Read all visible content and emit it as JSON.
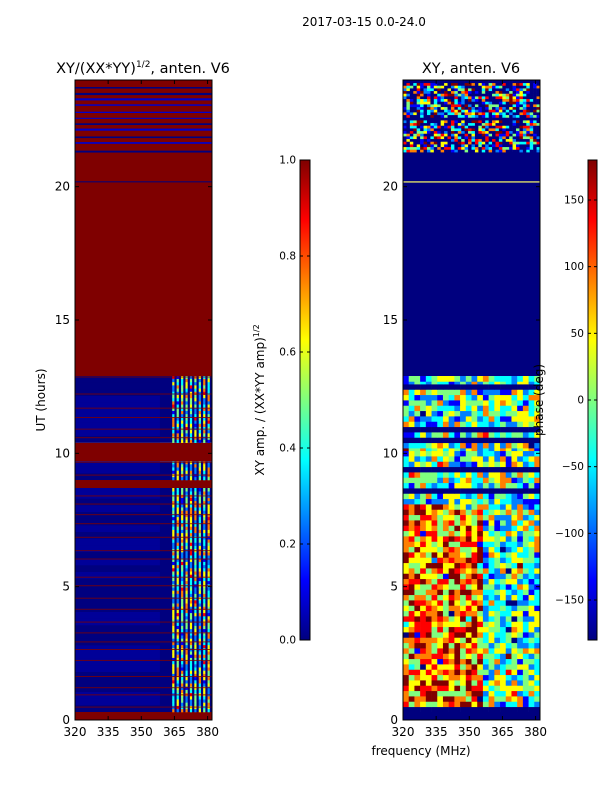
{
  "suptitle": "2017-03-15 0.0-24.0",
  "colors": {
    "jet": [
      "#00007f",
      "#0000ff",
      "#007fff",
      "#00ffff",
      "#7fff7f",
      "#ffff00",
      "#ff7f00",
      "#ff0000",
      "#7f0000"
    ],
    "dark_red": "#7f0000",
    "navy": "#00007f"
  },
  "chart_data": [
    {
      "type": "heatmap",
      "title": "XY/(XX*YY)^(1/2), anten. V6",
      "title_main": "XY/(XX*YY)",
      "title_sup": "1/2",
      "title_suffix": ", anten. V6",
      "xlabel": "",
      "ylabel": "UT (hours)",
      "xlim": [
        320,
        382
      ],
      "ylim": [
        0,
        24
      ],
      "xticks": [
        "320",
        "335",
        "350",
        "365",
        "380"
      ],
      "xtick_values": [
        320,
        335,
        350,
        365,
        380
      ],
      "yticks": [
        "0",
        "5",
        "10",
        "15",
        "20"
      ],
      "ytick_values": [
        0,
        5,
        10,
        15,
        20
      ],
      "bands": [
        {
          "t0": 0.0,
          "t1": 0.3,
          "kind": "saturated"
        },
        {
          "t0": 0.3,
          "t1": 8.7,
          "kind": "low_with_striped_channels"
        },
        {
          "t0": 8.7,
          "t1": 9.0,
          "kind": "saturated"
        },
        {
          "t0": 9.0,
          "t1": 9.7,
          "kind": "low_with_striped_channels"
        },
        {
          "t0": 9.7,
          "t1": 10.4,
          "kind": "saturated"
        },
        {
          "t0": 10.4,
          "t1": 12.9,
          "kind": "low_with_striped_channels"
        },
        {
          "t0": 12.9,
          "t1": 21.3,
          "kind": "saturated"
        },
        {
          "t0": 21.3,
          "t1": 24.0,
          "kind": "saturated_with_lines"
        }
      ],
      "colorbar": {
        "label": "XY amp. / (XX*YY amp)^(1/2)",
        "label_main": "XY amp. / (XX*YY amp)",
        "label_sup": "1/2",
        "min": 0.0,
        "max": 1.0,
        "ticks": [
          "0.0",
          "0.2",
          "0.4",
          "0.6",
          "0.8",
          "1.0"
        ],
        "tick_values": [
          0.0,
          0.2,
          0.4,
          0.6,
          0.8,
          1.0
        ]
      }
    },
    {
      "type": "heatmap",
      "title": "XY, anten. V6",
      "xlabel": "frequency (MHz)",
      "ylabel": "",
      "xlim": [
        320,
        382
      ],
      "ylim": [
        0,
        24
      ],
      "xticks": [
        "320",
        "335",
        "350",
        "365",
        "380"
      ],
      "xtick_values": [
        320,
        335,
        350,
        365,
        380
      ],
      "yticks": [
        "0",
        "5",
        "10",
        "15",
        "20"
      ],
      "ytick_values": [
        0,
        5,
        10,
        15,
        20
      ],
      "bands": [
        {
          "t0": 0.0,
          "t1": 0.3,
          "kind": "flagged"
        },
        {
          "t0": 0.3,
          "t1": 8.7,
          "kind": "phase_noise"
        },
        {
          "t0": 8.7,
          "t1": 10.4,
          "kind": "mixed"
        },
        {
          "t0": 10.4,
          "t1": 12.9,
          "kind": "phase_noise"
        },
        {
          "t0": 12.9,
          "t1": 21.3,
          "kind": "flagged"
        },
        {
          "t0": 21.3,
          "t1": 24.0,
          "kind": "random_noise"
        }
      ],
      "colorbar": {
        "label": "phase (deg)",
        "min": -180,
        "max": 180,
        "ticks": [
          "−150",
          "−100",
          "−50",
          "0",
          "50",
          "100",
          "150"
        ],
        "tick_values": [
          -150,
          -100,
          -50,
          0,
          50,
          100,
          150
        ]
      }
    }
  ]
}
